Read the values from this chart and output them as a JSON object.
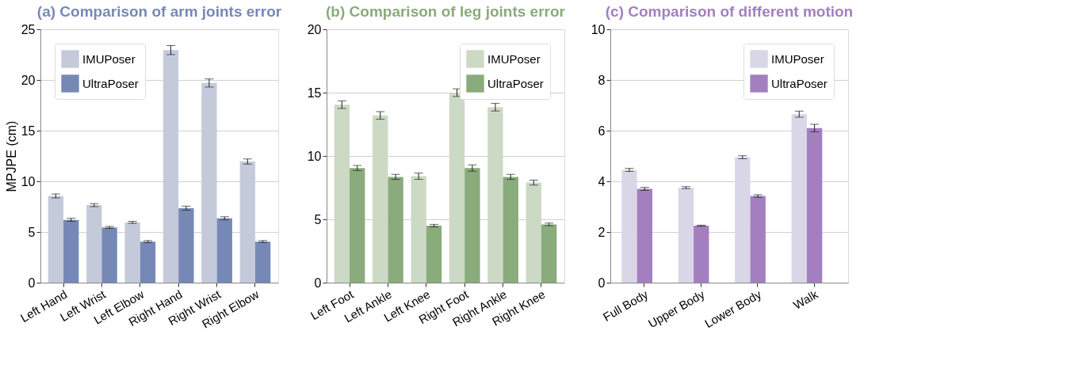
{
  "chart_data": [
    {
      "type": "bar",
      "title": "(a) Comparison of arm joints error",
      "ylabel": "MPJPE (cm)",
      "categories": [
        "Left Hand",
        "Left Wrist",
        "Left Elbow",
        "Right Hand",
        "Right Wrist",
        "Right Elbow"
      ],
      "series": [
        {
          "name": "IMUPoser",
          "color": "#c5cadb",
          "values": [
            8.55,
            7.65,
            5.95,
            22.95,
            19.7,
            11.95
          ],
          "errors": [
            0.2,
            0.15,
            0.1,
            0.45,
            0.4,
            0.25
          ]
        },
        {
          "name": "UltraPoser",
          "color": "#7689b6",
          "values": [
            6.2,
            5.45,
            4.05,
            7.35,
            6.35,
            4.05
          ],
          "errors": [
            0.15,
            0.1,
            0.1,
            0.2,
            0.15,
            0.1
          ]
        }
      ],
      "ylim": [
        0,
        25
      ],
      "yticks": [
        0,
        5,
        10,
        15,
        20,
        25
      ],
      "grid": "y",
      "legend": "top left"
    },
    {
      "type": "bar",
      "title": "(b) Comparison of leg joints error",
      "categories": [
        "Left Foot",
        "Left Ankle",
        "Left Knee",
        "Right Foot",
        "Right Ankle",
        "Right Knee"
      ],
      "series": [
        {
          "name": "IMUPoser",
          "color": "#ccd9c4",
          "values": [
            14.05,
            13.2,
            8.4,
            15.0,
            13.85,
            7.9
          ],
          "errors": [
            0.3,
            0.3,
            0.25,
            0.3,
            0.3,
            0.2
          ]
        },
        {
          "name": "UltraPoser",
          "color": "#8aab7b",
          "values": [
            9.05,
            8.35,
            4.5,
            9.05,
            8.35,
            4.6
          ],
          "errors": [
            0.2,
            0.2,
            0.1,
            0.25,
            0.2,
            0.1
          ]
        }
      ],
      "ylim": [
        0,
        20
      ],
      "yticks": [
        0,
        5,
        10,
        15,
        20
      ],
      "grid": "y",
      "legend": "top right"
    },
    {
      "type": "bar",
      "title": "(c) Comparison of different motion",
      "categories": [
        "Full Body",
        "Upper Body",
        "Lower Body",
        "Walk"
      ],
      "series": [
        {
          "name": "IMUPoser",
          "color": "#d9d6e8",
          "values": [
            4.45,
            3.75,
            4.95,
            6.65
          ],
          "errors": [
            0.06,
            0.04,
            0.06,
            0.12
          ]
        },
        {
          "name": "UltraPoser",
          "color": "#a37fc0",
          "values": [
            3.7,
            2.25,
            3.42,
            6.1
          ],
          "errors": [
            0.06,
            0.02,
            0.05,
            0.15
          ]
        }
      ],
      "ylim": [
        0,
        10
      ],
      "yticks": [
        0,
        2,
        4,
        6,
        8,
        10
      ],
      "grid": "y",
      "legend": "top right"
    }
  ]
}
